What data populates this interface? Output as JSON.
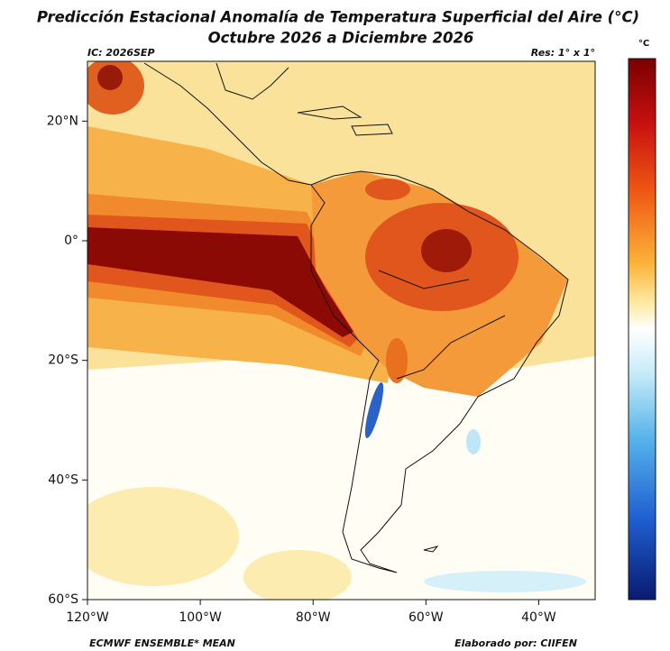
{
  "header": {
    "title": "Predicción Estacional Anomalía de Temperatura Superficial del Aire (°C)",
    "subtitle": "Octubre 2026 a Diciembre 2026",
    "ic": "IC: 2026SEP",
    "resolution": "Res: 1° x 1°"
  },
  "colorbar": {
    "unit": "°C"
  },
  "map": {
    "lonlim": [
      -120,
      -30
    ],
    "latlim": [
      -60,
      30
    ],
    "lon_ticks": [
      {
        "value": -120,
        "label": "120°W"
      },
      {
        "value": -100,
        "label": "100°W"
      },
      {
        "value": -80,
        "label": "80°W"
      },
      {
        "value": -60,
        "label": "60°W"
      },
      {
        "value": -40,
        "label": "40°W"
      }
    ],
    "lat_ticks": [
      {
        "value": 20,
        "label": "20°N"
      },
      {
        "value": 0,
        "label": "0°"
      },
      {
        "value": -20,
        "label": "20°S"
      },
      {
        "value": -40,
        "label": "40°S"
      },
      {
        "value": -60,
        "label": "60°S"
      }
    ]
  },
  "footer": {
    "left": "ECMWF ENSEMBLE* MEAN",
    "right": "Elaborado por: CIIFEN"
  }
}
